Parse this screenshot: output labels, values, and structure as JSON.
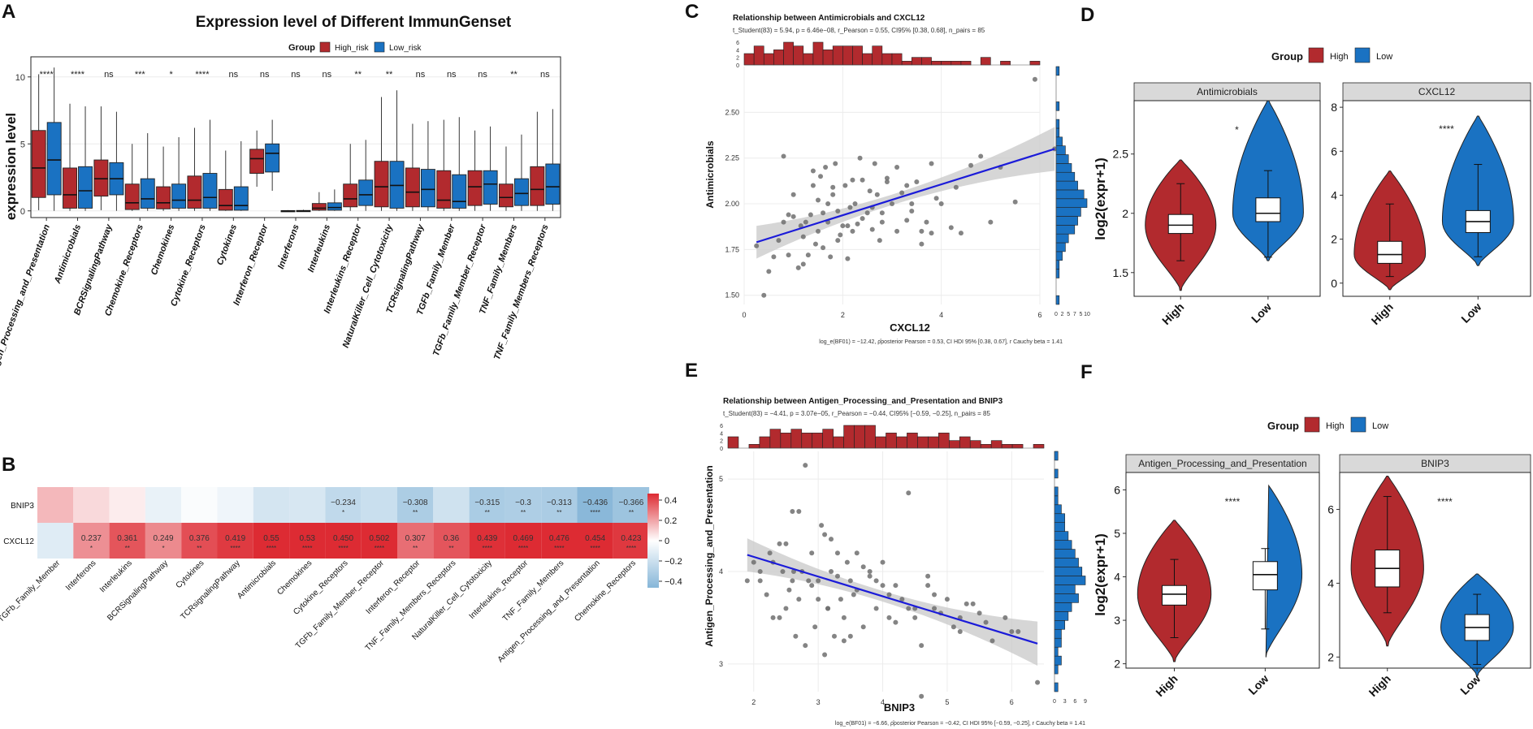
{
  "colors": {
    "high": "#b22a2e",
    "low": "#1a72c2",
    "heat_pos": "#dd2b33",
    "heat_neg": "#86b6d8",
    "line": "#1b1bd9",
    "strip": "#d9d9d9"
  },
  "panel_letters": {
    "A": "A",
    "B": "B",
    "C": "C",
    "D": "D",
    "E": "E",
    "F": "F"
  },
  "chart_data": [
    {
      "id": "A",
      "type": "box",
      "title": "Expression level of Different ImmunGenset",
      "legend_title": "Group",
      "legend_entries": [
        "High_risk",
        "Low_risk"
      ],
      "ylabel": "expression level",
      "ylim": [
        -0.5,
        11.5
      ],
      "yticks": [
        0,
        5,
        10
      ],
      "categories": [
        "Antigen_Processing_and_Presentation",
        "Antimicrobials",
        "BCRSignalingPathway",
        "Chemokine_Receptors",
        "Chemokines",
        "Cytokine_Receptors",
        "Cytokines",
        "Interferon_Receptor",
        "Interferons",
        "Interleukins",
        "Interleukins_Receptor",
        "NaturalKiller_Cell_Cytotoxicity",
        "TCRsignalingPathway",
        "TGFb_Family_Member",
        "TGFb_Family_Member_Receptor",
        "TNF_Family_Members",
        "TNF_Family_Members_Receptors"
      ],
      "significance": [
        "****",
        "****",
        "ns",
        "***",
        "*",
        "****",
        "ns",
        "ns",
        "ns",
        "ns",
        "**",
        "**",
        "ns",
        "ns",
        "ns",
        "**",
        "ns"
      ],
      "high": [
        [
          0.05,
          1.0,
          3.2,
          6.0,
          10.2
        ],
        [
          0.0,
          0.2,
          1.2,
          3.2,
          8.0
        ],
        [
          0.05,
          1.1,
          2.4,
          3.8,
          7.8
        ],
        [
          0.0,
          0.1,
          0.6,
          2.0,
          5.0
        ],
        [
          0.0,
          0.15,
          0.6,
          1.8,
          4.8
        ],
        [
          0.0,
          0.2,
          0.8,
          2.6,
          6.2
        ],
        [
          0.0,
          0.05,
          0.4,
          1.6,
          4.5
        ],
        [
          1.8,
          2.8,
          3.9,
          4.6,
          6.0
        ],
        [
          0.0,
          0.0,
          0.0,
          0.02,
          0.05
        ],
        [
          0.0,
          0.05,
          0.2,
          0.55,
          1.4
        ],
        [
          0.0,
          0.3,
          0.9,
          2.0,
          5.0
        ],
        [
          0.0,
          0.3,
          1.8,
          3.7,
          8.5
        ],
        [
          0.0,
          0.3,
          1.4,
          3.2,
          6.5
        ],
        [
          0.0,
          0.2,
          0.8,
          3.0,
          6.8
        ],
        [
          0.0,
          0.4,
          1.8,
          3.0,
          6.0
        ],
        [
          0.0,
          0.3,
          1.0,
          2.0,
          4.8
        ],
        [
          0.0,
          0.4,
          1.6,
          3.3,
          7.4
        ]
      ],
      "low": [
        [
          0.0,
          1.2,
          3.8,
          6.6,
          10.7
        ],
        [
          0.0,
          0.2,
          1.5,
          3.3,
          7.8
        ],
        [
          0.0,
          1.2,
          2.4,
          3.6,
          7.4
        ],
        [
          0.0,
          0.2,
          0.9,
          2.4,
          5.8
        ],
        [
          0.0,
          0.2,
          0.8,
          2.0,
          5.5
        ],
        [
          0.0,
          0.2,
          1.0,
          2.8,
          6.8
        ],
        [
          0.0,
          0.05,
          0.4,
          1.8,
          5.2
        ],
        [
          1.5,
          2.9,
          4.3,
          5.0,
          6.8
        ],
        [
          0.0,
          0.0,
          0.0,
          0.03,
          0.08
        ],
        [
          0.0,
          0.05,
          0.25,
          0.6,
          1.6
        ],
        [
          0.0,
          0.4,
          1.2,
          2.3,
          5.3
        ],
        [
          0.0,
          0.2,
          1.9,
          3.7,
          9.0
        ],
        [
          0.0,
          0.3,
          1.6,
          3.1,
          6.7
        ],
        [
          0.0,
          0.2,
          0.7,
          2.7,
          7.0
        ],
        [
          0.0,
          0.5,
          2.0,
          3.0,
          6.3
        ],
        [
          0.0,
          0.4,
          1.3,
          2.4,
          5.7
        ],
        [
          0.0,
          0.5,
          1.8,
          3.5,
          7.6
        ]
      ]
    },
    {
      "id": "B",
      "type": "heatmap",
      "rows": [
        "BNIP3",
        "CXCL12"
      ],
      "columns": [
        "TGFb_Family_Member",
        "Interferons",
        "Interleukins",
        "BCRSignalingPathway",
        "Cytokines",
        "TCRsignalingPathway",
        "Antimicrobials",
        "Chemokines",
        "Cytokine_Receptors",
        "TGFb_Family_Member_Receptor",
        "Interferon_Receptor",
        "TNF_Family_Members_Receptors",
        "NaturalKiller_Cell_Cytotoxicity",
        "Interleukins_Receptor",
        "TNF_Family_Members",
        "Antigen_Processing_and_Presentation",
        "Chemokine_Receptors"
      ],
      "values": [
        [
          0.15,
          0.08,
          0.04,
          -0.08,
          -0.02,
          -0.06,
          -0.16,
          -0.15,
          -0.234,
          -0.2,
          -0.308,
          -0.18,
          -0.315,
          -0.3,
          -0.313,
          -0.436,
          -0.366
        ],
        [
          -0.12,
          0.237,
          0.361,
          0.249,
          0.376,
          0.419,
          0.55,
          0.53,
          0.45,
          0.502,
          0.307,
          0.36,
          0.439,
          0.469,
          0.476,
          0.454,
          0.423
        ]
      ],
      "labels": [
        [
          "",
          "",
          "",
          "",
          "",
          "",
          "",
          "",
          "−0.234",
          "",
          "−0.308",
          "",
          "−0.315",
          "−0.3",
          "−0.313",
          "−0.436",
          "−0.366"
        ],
        [
          "",
          "0.237",
          "0.361",
          "0.249",
          "0.376",
          "0.419",
          "0.55",
          "0.53",
          "0.450",
          "0.502",
          "0.307",
          "0.36",
          "0.439",
          "0.469",
          "0.476",
          "0.454",
          "0.423"
        ]
      ],
      "stars": [
        [
          "",
          "",
          "",
          "",
          "",
          "",
          "",
          "",
          "*",
          "",
          "**",
          "",
          "**",
          "**",
          "**",
          "****",
          "**"
        ],
        [
          "",
          "*",
          "**",
          "*",
          "**",
          "****",
          "****",
          "****",
          "****",
          "****",
          "**",
          "**",
          "****",
          "****",
          "****",
          "****",
          "****"
        ]
      ],
      "legend_ticks": [
        "0.4",
        "0.2",
        "0",
        "−0.2",
        "−0.4"
      ]
    },
    {
      "id": "C",
      "type": "scatter",
      "title": "Relationship between Antimicrobials and CXCL12",
      "subtitle": "t_Student(83) = 5.94, p = 6.46e−08, r_Pearson = 0.55, CI95% [0.38, 0.68], n_pairs = 85",
      "footnote": "log_e(BF01) = −12.42, ρ̂posterior Pearson = 0.53, CI HDI 95% [0.38, 0.67], r Cauchy beta = 1.41",
      "xlabel": "CXCL12",
      "ylabel": "Antimicrobials",
      "xlim": [
        0,
        6
      ],
      "ylim": [
        1.45,
        2.75
      ],
      "xticks": [
        "0",
        "2",
        "4",
        "6"
      ],
      "yticks": [
        "1.50",
        "1.75",
        "2.00",
        "2.25",
        "2.50"
      ],
      "top_hist_ticks": [
        "0",
        "2",
        "4",
        "6"
      ],
      "side_hist_ticks": [
        "0",
        "2",
        "5",
        "7",
        "5",
        "10"
      ],
      "fit": {
        "x0": 0.25,
        "y0": 1.79,
        "x1": 6.3,
        "y1": 2.3
      },
      "x": [
        0.25,
        0.5,
        0.6,
        0.7,
        0.8,
        0.9,
        1.0,
        1.1,
        1.15,
        1.2,
        1.25,
        1.3,
        1.35,
        1.4,
        1.45,
        1.5,
        1.5,
        1.55,
        1.6,
        1.65,
        1.7,
        1.75,
        1.8,
        1.85,
        1.9,
        1.95,
        2.0,
        2.05,
        2.1,
        2.15,
        2.2,
        2.25,
        2.3,
        2.35,
        2.4,
        2.5,
        2.55,
        2.6,
        2.65,
        2.7,
        2.75,
        2.8,
        2.9,
        3.0,
        3.1,
        3.2,
        3.3,
        3.4,
        3.5,
        3.6,
        3.7,
        3.8,
        3.9,
        4.0,
        4.2,
        4.4,
        4.6,
        4.8,
        5.0,
        5.2,
        5.5,
        5.9,
        6.3,
        0.8,
        1.2,
        1.7,
        2.2,
        2.8,
        3.3,
        1.0,
        1.4,
        1.9,
        2.4,
        2.9,
        3.6,
        0.4,
        1.6,
        2.1,
        3.1,
        3.8,
        4.3,
        0.9,
        1.8,
        2.6,
        3.4
      ],
      "y": [
        1.77,
        1.63,
        1.71,
        1.8,
        2.26,
        1.72,
        1.93,
        1.65,
        1.88,
        1.67,
        1.9,
        1.72,
        1.94,
        2.1,
        1.78,
        2.02,
        1.85,
        2.15,
        1.76,
        2.2,
        1.9,
        1.71,
        2.05,
        2.22,
        1.96,
        1.83,
        1.88,
        2.1,
        1.7,
        1.98,
        2.13,
        2.0,
        1.89,
        2.25,
        2.13,
        1.95,
        2.07,
        1.86,
        2.22,
        2.05,
        1.8,
        1.9,
        2.14,
        2.0,
        1.85,
        2.06,
        1.91,
        2.0,
        2.12,
        1.78,
        1.9,
        2.22,
        2.03,
        2.0,
        1.87,
        1.84,
        2.21,
        2.26,
        1.9,
        2.2,
        2.01,
        2.68,
        2.3,
        1.9,
        1.82,
        2.0,
        1.85,
        1.95,
        2.1,
        2.05,
        2.18,
        1.8,
        1.92,
        2.12,
        1.85,
        1.5,
        1.95,
        1.88,
        2.2,
        1.84,
        2.09,
        1.94,
        2.09,
        1.98,
        1.96
      ],
      "top_hist": [
        3,
        5,
        3,
        4,
        6,
        5,
        3,
        6,
        4,
        5,
        5,
        5,
        3,
        5,
        3,
        3,
        1,
        2,
        2,
        1,
        1,
        1,
        1,
        0,
        2,
        0,
        1,
        0,
        0,
        1
      ],
      "side_hist": [
        1,
        0,
        0,
        1,
        1,
        2,
        3,
        4,
        6,
        7,
        8,
        10,
        9,
        7,
        6,
        5,
        4,
        3,
        2,
        1,
        1,
        0,
        1,
        0,
        0,
        0,
        1
      ]
    },
    {
      "id": "D",
      "type": "violin",
      "legend_title": "Group",
      "legend_entries": [
        "High",
        "Low"
      ],
      "ylabel": "log2(expr+1)",
      "facets": [
        {
          "name": "Antimicrobials",
          "significance": "*",
          "ylim": [
            1.3,
            2.95
          ],
          "yticks": [
            1.5,
            2.0,
            2.5
          ],
          "high": {
            "min": 1.6,
            "q1": 1.83,
            "median": 1.9,
            "q3": 1.99,
            "max": 2.25,
            "vmin": 1.35,
            "vmax": 2.45
          },
          "low": {
            "min": 1.63,
            "q1": 1.93,
            "median": 2.0,
            "q3": 2.13,
            "max": 2.36,
            "vmin": 1.6,
            "vmax": 2.95
          }
        },
        {
          "name": "CXCL12",
          "significance": "****",
          "ylim": [
            -0.6,
            8.3
          ],
          "yticks": [
            0,
            2,
            4,
            6,
            8
          ],
          "high": {
            "min": 0.3,
            "q1": 0.9,
            "median": 1.3,
            "q3": 1.9,
            "max": 3.6,
            "vmin": -0.3,
            "vmax": 5.1
          },
          "low": {
            "min": 1.2,
            "q1": 2.3,
            "median": 2.8,
            "q3": 3.3,
            "max": 5.4,
            "vmin": 0.8,
            "vmax": 7.6
          }
        }
      ],
      "xticks": [
        "High",
        "Low"
      ]
    },
    {
      "id": "E",
      "type": "scatter",
      "title": "Relationship between Antigen_Processing_and_Presentation and BNIP3",
      "subtitle": "t_Student(83) = −4.41, p = 3.07e−05, r_Pearson = −0.44, CI95% [−0.59, −0.25], n_pairs = 85",
      "footnote": "log_e(BF01) = −6.66, ρ̂posterior Pearson = −0.42, CI HDI 95% [−0.59, −0.25], r Cauchy beta = 1.41",
      "xlabel": "BNIP3",
      "ylabel": "Antigen_Processing_and_Presentation",
      "xlim": [
        1.6,
        6.5
      ],
      "ylim": [
        2.7,
        5.3
      ],
      "xticks": [
        "2",
        "3",
        "4",
        "5",
        "6"
      ],
      "yticks": [
        "3",
        "4",
        "5"
      ],
      "top_hist_ticks": [
        "0",
        "2",
        "4",
        "6"
      ],
      "side_hist_ticks": [
        "0",
        "3",
        "6",
        "9"
      ],
      "fit": {
        "x0": 1.9,
        "y0": 4.18,
        "x1": 6.4,
        "y1": 3.22
      },
      "x": [
        1.9,
        2.0,
        2.1,
        2.2,
        2.25,
        2.3,
        2.4,
        2.45,
        2.5,
        2.55,
        2.6,
        2.62,
        2.65,
        2.7,
        2.75,
        2.8,
        2.85,
        2.9,
        2.95,
        3.0,
        3.05,
        3.1,
        3.15,
        3.2,
        3.25,
        3.3,
        3.35,
        3.4,
        3.45,
        3.5,
        3.55,
        3.6,
        3.7,
        3.8,
        3.9,
        4.0,
        4.1,
        4.2,
        4.3,
        4.4,
        4.5,
        4.6,
        4.7,
        4.8,
        4.9,
        5.0,
        5.1,
        5.2,
        5.3,
        5.5,
        5.7,
        5.9,
        6.1,
        6.4,
        2.3,
        2.6,
        3.0,
        3.3,
        3.6,
        3.9,
        4.2,
        4.5,
        2.5,
        2.8,
        3.1,
        3.4,
        3.7,
        4.0,
        4.4,
        4.8,
        5.2,
        2.1,
        2.7,
        3.2,
        3.8,
        4.6,
        5.6,
        2.4,
        2.9,
        3.5,
        4.1,
        4.7,
        5.4,
        6.0,
        3.15
      ],
      "y": [
        3.9,
        4.1,
        4.0,
        3.75,
        4.2,
        3.5,
        4.3,
        4.0,
        3.6,
        3.8,
        4.65,
        4.0,
        3.3,
        4.65,
        4.0,
        3.2,
        3.9,
        4.2,
        3.4,
        3.9,
        4.5,
        4.4,
        3.6,
        4.0,
        3.3,
        4.2,
        3.7,
        3.5,
        4.1,
        3.9,
        3.75,
        4.2,
        3.4,
        4.0,
        3.6,
        4.1,
        3.5,
        3.85,
        3.7,
        4.85,
        3.5,
        3.2,
        3.95,
        3.6,
        3.55,
        3.7,
        3.4,
        3.5,
        3.65,
        3.55,
        3.25,
        3.5,
        3.35,
        2.8,
        4.1,
        3.9,
        3.7,
        3.95,
        3.8,
        3.9,
        3.45,
        3.6,
        4.3,
        5.15,
        3.1,
        3.25,
        4.05,
        3.85,
        3.6,
        3.75,
        3.35,
        3.9,
        3.7,
        4.35,
        3.95,
        2.65,
        3.45,
        3.5,
        3.85,
        3.3,
        3.75,
        3.85,
        3.65,
        3.35,
        3.6
      ],
      "top_hist": [
        3,
        0,
        1,
        3,
        5,
        4,
        5,
        4,
        4,
        5,
        3,
        6,
        6,
        6,
        3,
        4,
        3,
        4,
        3,
        3,
        4,
        2,
        3,
        2,
        1,
        2,
        1,
        1,
        0,
        1
      ],
      "side_hist": [
        1,
        0,
        1,
        2,
        1,
        2,
        2,
        3,
        4,
        5,
        7,
        6,
        9,
        8,
        7,
        6,
        5,
        4,
        3,
        3,
        2,
        1,
        1,
        0,
        1,
        0,
        1
      ]
    },
    {
      "id": "F",
      "type": "violin",
      "legend_title": "Group",
      "legend_entries": [
        "High",
        "Low"
      ],
      "ylabel": "log2(expr+1)",
      "facets": [
        {
          "name": "Antigen_Processing_and_Presentation",
          "significance": "****",
          "ylim": [
            1.9,
            6.4
          ],
          "yticks": [
            2,
            3,
            4,
            5,
            6
          ],
          "high": {
            "min": 2.6,
            "q1": 3.35,
            "median": 3.6,
            "q3": 3.8,
            "max": 4.4,
            "vmin": 2.05,
            "vmax": 5.3
          },
          "low": {
            "min": 2.8,
            "q1": 3.7,
            "median": 4.05,
            "q3": 4.35,
            "max": 4.65,
            "vmin": 2.15,
            "vmax": 6.2
          }
        },
        {
          "name": "BNIP3",
          "significance": "****",
          "ylim": [
            1.7,
            7.0
          ],
          "yticks": [
            2,
            4,
            6
          ],
          "high": {
            "min": 3.2,
            "q1": 3.9,
            "median": 4.4,
            "q3": 4.9,
            "max": 6.35,
            "vmin": 2.3,
            "vmax": 6.9
          },
          "low": {
            "min": 1.8,
            "q1": 2.45,
            "median": 2.8,
            "q3": 3.15,
            "max": 3.7,
            "vmin": 1.5,
            "vmax": 4.25
          }
        }
      ],
      "xticks": [
        "High",
        "Low"
      ]
    }
  ]
}
